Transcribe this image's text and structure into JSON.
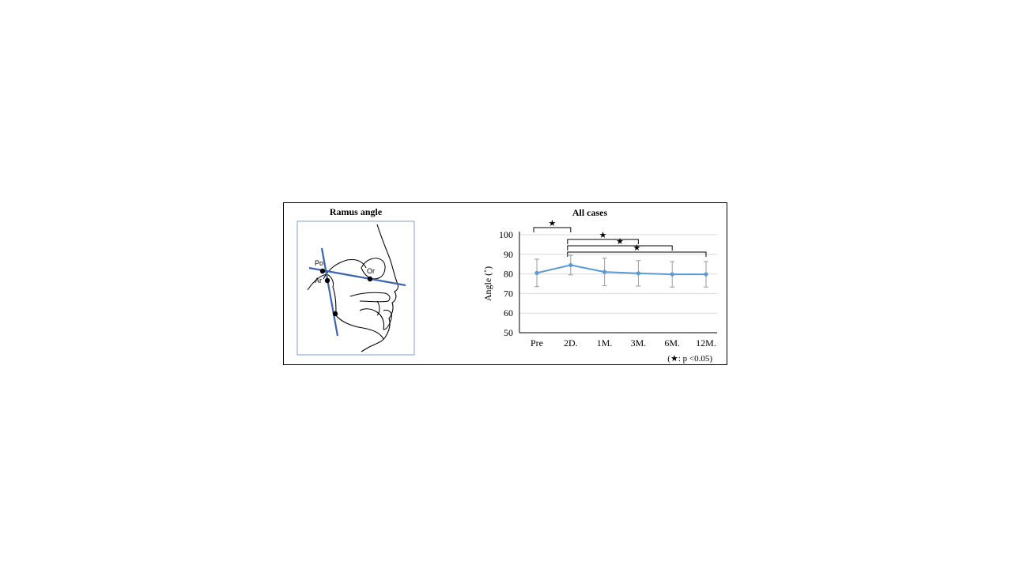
{
  "figure": {
    "left_panel": {
      "title": "Ramus angle",
      "landmarks": [
        "Po",
        "Ar",
        "Or"
      ],
      "line_color": "#3b64b4"
    }
  },
  "chart_data": {
    "type": "line",
    "title": "All cases",
    "xlabel": "",
    "ylabel": "Angle (˚)",
    "categories": [
      "Pre",
      "2D.",
      "1M.",
      "3M.",
      "6M.",
      "12M."
    ],
    "series": [
      {
        "values": [
          80.5,
          84.5,
          81.0,
          80.3,
          79.8,
          79.8
        ],
        "error": [
          7.0,
          5.0,
          7.0,
          6.5,
          6.5,
          6.5
        ],
        "color": "#5b9bd5"
      }
    ],
    "ylim": [
      50,
      100
    ],
    "yticks": [
      50,
      60,
      70,
      80,
      90,
      100
    ],
    "grid": true,
    "significance": [
      {
        "from": "Pre",
        "to": "2D.",
        "marker": "★"
      },
      {
        "from": "2D.",
        "to": "3M.",
        "marker": "★"
      },
      {
        "from": "2D.",
        "to": "6M.",
        "marker": "★"
      },
      {
        "from": "2D.",
        "to": "12M.",
        "marker": "★"
      }
    ],
    "note": "(★: p <0.05)"
  }
}
